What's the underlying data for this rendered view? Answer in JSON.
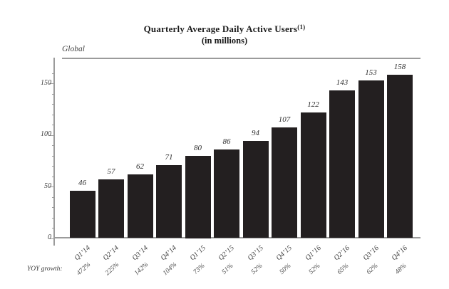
{
  "chart_data": {
    "type": "bar",
    "title": "Quarterly Average Daily Active Users",
    "title_superscript": "(1)",
    "subtitle": "(in millions)",
    "region_label": "Global",
    "categories": [
      "Q1’14",
      "Q2’14",
      "Q3’14",
      "Q4’14",
      "Q1’15",
      "Q2’15",
      "Q3’15",
      "Q4’15",
      "Q1’16",
      "Q2’16",
      "Q3’16",
      "Q4’16"
    ],
    "values": [
      46,
      57,
      62,
      71,
      80,
      86,
      94,
      107,
      122,
      143,
      153,
      158
    ],
    "yoy_caption": "YOY growth:",
    "yoy_growth": [
      "472%",
      "225%",
      "142%",
      "104%",
      "73%",
      "51%",
      "52%",
      "50%",
      "52%",
      "65%",
      "62%",
      "48%"
    ],
    "ylabel": "",
    "xlabel": "",
    "y_ticks": [
      0,
      50,
      100,
      150
    ],
    "minor_tick_step": 10,
    "ylim": [
      0,
      160
    ],
    "grid": false,
    "legend_position": "none",
    "bar_color": "#231f20",
    "axis_color": "#9b9b9b",
    "text_color": "#3c3c3c"
  }
}
